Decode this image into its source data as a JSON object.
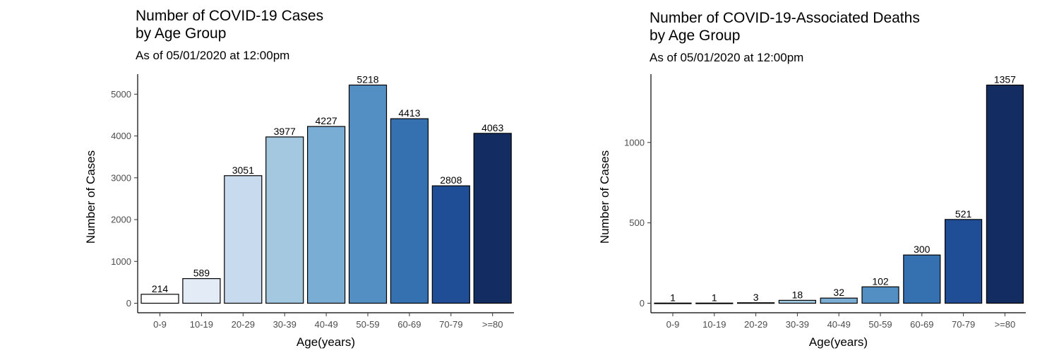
{
  "chart_data": [
    {
      "type": "bar",
      "title_line1": "Number of COVID-19 Cases",
      "title_line2": "by Age Group",
      "subtitle": "As of 05/01/2020 at 12:00pm",
      "xlabel": "Age(years)",
      "ylabel": "Number of Cases",
      "categories": [
        "0-9",
        "10-19",
        "20-29",
        "30-39",
        "40-49",
        "50-59",
        "60-69",
        "70-79",
        ">=80"
      ],
      "values": [
        214,
        589,
        3051,
        3977,
        4227,
        5218,
        4413,
        2808,
        4063
      ],
      "colors": [
        "#ffffff",
        "#e2ebf6",
        "#c8daed",
        "#a4c8e0",
        "#7aadd4",
        "#548fc3",
        "#3570b0",
        "#1f4e96",
        "#132d63"
      ],
      "yticks": [
        0,
        1000,
        2000,
        3000,
        4000,
        5000
      ],
      "ylim": [
        0,
        5479
      ],
      "grid": false,
      "legend": "none"
    },
    {
      "type": "bar",
      "title_line1": "Number of COVID-19-Associated Deaths",
      "title_line2": "by Age Group",
      "subtitle": "As of 05/01/2020 at 12:00pm",
      "xlabel": "Age(years)",
      "ylabel": "Number of Cases",
      "categories": [
        "0-9",
        "10-19",
        "20-29",
        "30-39",
        "40-49",
        "50-59",
        "60-69",
        "70-79",
        ">=80"
      ],
      "values": [
        1,
        1,
        3,
        18,
        32,
        102,
        300,
        521,
        1357
      ],
      "colors": [
        "#ffffff",
        "#e2ebf6",
        "#c8daed",
        "#a4c8e0",
        "#7aadd4",
        "#548fc3",
        "#3570b0",
        "#1f4e96",
        "#132d63"
      ],
      "yticks": [
        0,
        500,
        1000
      ],
      "ylim": [
        0,
        1425
      ],
      "grid": false,
      "legend": "none"
    }
  ]
}
